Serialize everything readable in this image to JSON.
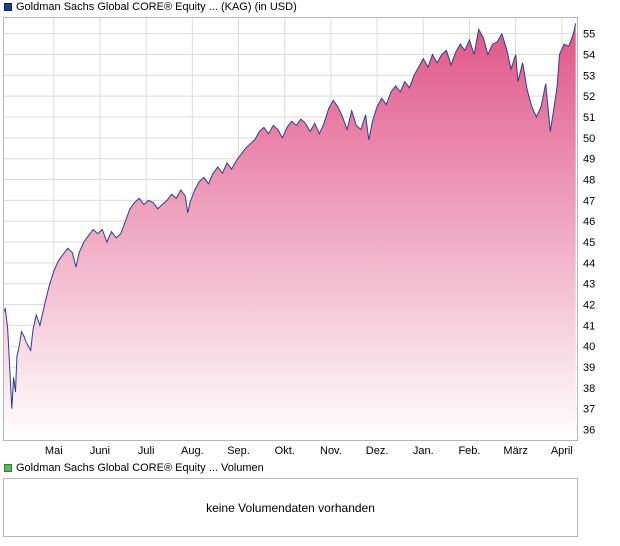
{
  "legend_price": {
    "label": "Goldman Sachs Global CORE® Equity ... (KAG) (in USD)",
    "color": "#1c3f94"
  },
  "legend_volume": {
    "label": "Goldman Sachs Global CORE® Equity ... Volumen",
    "color": "#5cb85c"
  },
  "volume_panel": {
    "message": "keine Volumendaten vorhanden"
  },
  "colors": {
    "line": "#2b3f8f",
    "fill_top": "#e05586",
    "fill_bottom": "#ffffff",
    "grid": "#dcdcdc",
    "border": "#b8b8b8"
  },
  "chart_data": {
    "type": "area",
    "title": "",
    "xlabel": "",
    "ylabel": "",
    "y_axis_side": "right",
    "grid": true,
    "ylim": [
      35.5,
      55.8
    ],
    "y_ticks": [
      36,
      37,
      38,
      39,
      40,
      41,
      42,
      43,
      44,
      45,
      46,
      47,
      48,
      49,
      50,
      51,
      52,
      53,
      54,
      55
    ],
    "x_ticks": [
      {
        "label": "Mai",
        "x": 1.1
      },
      {
        "label": "Juni",
        "x": 2.1
      },
      {
        "label": "Juli",
        "x": 3.1
      },
      {
        "label": "Aug.",
        "x": 4.1
      },
      {
        "label": "Sep.",
        "x": 5.1
      },
      {
        "label": "Okt.",
        "x": 6.1
      },
      {
        "label": "Nov.",
        "x": 7.1
      },
      {
        "label": "Dez.",
        "x": 8.1
      },
      {
        "label": "Jan.",
        "x": 9.1
      },
      {
        "label": "Feb.",
        "x": 10.1
      },
      {
        "label": "März",
        "x": 11.1
      },
      {
        "label": "April",
        "x": 12.1
      }
    ],
    "xlim": [
      0,
      12.45
    ],
    "series": [
      {
        "values": [
          [
            0.0,
            41.6
          ],
          [
            0.05,
            41.8
          ],
          [
            0.1,
            40.9
          ],
          [
            0.15,
            38.8
          ],
          [
            0.19,
            37.0
          ],
          [
            0.23,
            38.5
          ],
          [
            0.27,
            37.8
          ],
          [
            0.3,
            39.5
          ],
          [
            0.35,
            40.0
          ],
          [
            0.4,
            40.7
          ],
          [
            0.45,
            40.5
          ],
          [
            0.5,
            40.2
          ],
          [
            0.55,
            40.0
          ],
          [
            0.6,
            39.8
          ],
          [
            0.65,
            40.8
          ],
          [
            0.72,
            41.5
          ],
          [
            0.8,
            41.0
          ],
          [
            0.9,
            42.0
          ],
          [
            1.0,
            42.9
          ],
          [
            1.1,
            43.6
          ],
          [
            1.2,
            44.1
          ],
          [
            1.3,
            44.4
          ],
          [
            1.4,
            44.7
          ],
          [
            1.5,
            44.5
          ],
          [
            1.58,
            43.8
          ],
          [
            1.65,
            44.5
          ],
          [
            1.75,
            45.0
          ],
          [
            1.85,
            45.3
          ],
          [
            1.95,
            45.6
          ],
          [
            2.05,
            45.4
          ],
          [
            2.15,
            45.6
          ],
          [
            2.25,
            45.0
          ],
          [
            2.35,
            45.5
          ],
          [
            2.45,
            45.2
          ],
          [
            2.55,
            45.4
          ],
          [
            2.65,
            46.0
          ],
          [
            2.75,
            46.6
          ],
          [
            2.85,
            46.9
          ],
          [
            2.95,
            47.1
          ],
          [
            3.05,
            46.8
          ],
          [
            3.15,
            47.0
          ],
          [
            3.25,
            46.9
          ],
          [
            3.35,
            46.6
          ],
          [
            3.45,
            46.8
          ],
          [
            3.55,
            47.0
          ],
          [
            3.65,
            47.3
          ],
          [
            3.75,
            47.1
          ],
          [
            3.85,
            47.5
          ],
          [
            3.95,
            47.2
          ],
          [
            4.0,
            46.4
          ],
          [
            4.05,
            46.9
          ],
          [
            4.15,
            47.5
          ],
          [
            4.25,
            47.9
          ],
          [
            4.35,
            48.1
          ],
          [
            4.45,
            47.8
          ],
          [
            4.55,
            48.3
          ],
          [
            4.65,
            48.6
          ],
          [
            4.75,
            48.3
          ],
          [
            4.85,
            48.8
          ],
          [
            4.95,
            48.5
          ],
          [
            5.05,
            48.9
          ],
          [
            5.15,
            49.2
          ],
          [
            5.25,
            49.5
          ],
          [
            5.35,
            49.7
          ],
          [
            5.45,
            49.9
          ],
          [
            5.55,
            50.3
          ],
          [
            5.65,
            50.5
          ],
          [
            5.75,
            50.2
          ],
          [
            5.85,
            50.6
          ],
          [
            5.95,
            50.4
          ],
          [
            6.05,
            50.0
          ],
          [
            6.15,
            50.5
          ],
          [
            6.25,
            50.8
          ],
          [
            6.35,
            50.6
          ],
          [
            6.45,
            50.9
          ],
          [
            6.55,
            50.7
          ],
          [
            6.65,
            50.3
          ],
          [
            6.75,
            50.7
          ],
          [
            6.85,
            50.2
          ],
          [
            6.95,
            50.7
          ],
          [
            7.05,
            51.4
          ],
          [
            7.15,
            51.8
          ],
          [
            7.25,
            51.5
          ],
          [
            7.35,
            51.0
          ],
          [
            7.45,
            50.4
          ],
          [
            7.55,
            51.3
          ],
          [
            7.65,
            50.6
          ],
          [
            7.75,
            50.4
          ],
          [
            7.85,
            51.1
          ],
          [
            7.92,
            49.9
          ],
          [
            8.0,
            50.8
          ],
          [
            8.1,
            51.5
          ],
          [
            8.2,
            51.9
          ],
          [
            8.3,
            51.6
          ],
          [
            8.4,
            52.2
          ],
          [
            8.5,
            52.5
          ],
          [
            8.6,
            52.2
          ],
          [
            8.7,
            52.7
          ],
          [
            8.8,
            52.4
          ],
          [
            8.9,
            53.0
          ],
          [
            9.0,
            53.4
          ],
          [
            9.1,
            53.8
          ],
          [
            9.2,
            53.4
          ],
          [
            9.3,
            54.0
          ],
          [
            9.4,
            53.6
          ],
          [
            9.5,
            54.0
          ],
          [
            9.6,
            54.2
          ],
          [
            9.7,
            53.5
          ],
          [
            9.8,
            54.1
          ],
          [
            9.9,
            54.5
          ],
          [
            10.0,
            54.2
          ],
          [
            10.1,
            54.7
          ],
          [
            10.2,
            54.0
          ],
          [
            10.3,
            55.2
          ],
          [
            10.4,
            54.8
          ],
          [
            10.5,
            54.0
          ],
          [
            10.6,
            54.5
          ],
          [
            10.7,
            54.6
          ],
          [
            10.8,
            55.0
          ],
          [
            10.9,
            54.3
          ],
          [
            11.0,
            53.3
          ],
          [
            11.1,
            54.0
          ],
          [
            11.15,
            52.7
          ],
          [
            11.25,
            53.6
          ],
          [
            11.35,
            52.3
          ],
          [
            11.45,
            51.5
          ],
          [
            11.55,
            51.0
          ],
          [
            11.65,
            51.5
          ],
          [
            11.75,
            52.6
          ],
          [
            11.85,
            50.3
          ],
          [
            11.92,
            51.3
          ],
          [
            12.0,
            52.5
          ],
          [
            12.05,
            54.0
          ],
          [
            12.15,
            54.5
          ],
          [
            12.25,
            54.4
          ],
          [
            12.35,
            55.0
          ],
          [
            12.4,
            55.5
          ]
        ]
      }
    ]
  }
}
